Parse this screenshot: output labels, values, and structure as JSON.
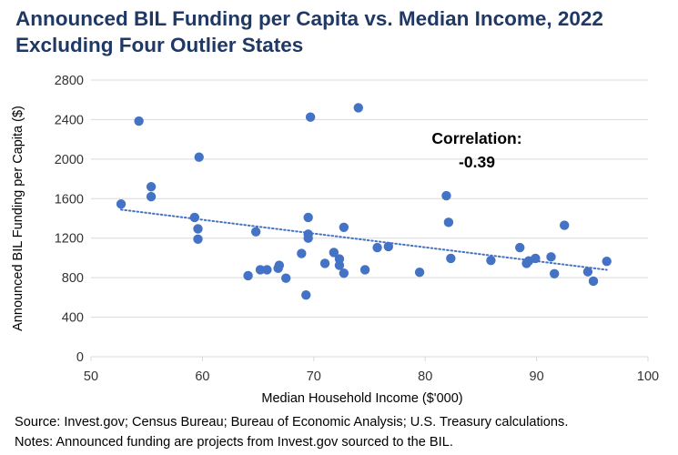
{
  "header": {
    "title_line1": "Announced BIL Funding per Capita vs. Median Income, 2022",
    "title_line2": "Excluding Four Outlier States"
  },
  "footer": {
    "source": "Source: Invest.gov; Census Bureau; Bureau of Economic Analysis; U.S. Treasury calculations.",
    "notes": "Notes: Announced funding are projects from Invest.gov sourced to the BIL."
  },
  "chart_data": {
    "type": "scatter",
    "title": "Announced BIL Funding per Capita vs. Median Income, 2022",
    "subtitle": "Excluding Four Outlier States",
    "xlabel": "Median Household Income ($'000)",
    "ylabel": "Announced BIL Funding per Capita ($)",
    "xlim": [
      50,
      100
    ],
    "ylim": [
      0,
      2800
    ],
    "xticks": [
      50,
      60,
      70,
      80,
      90,
      100
    ],
    "yticks": [
      0,
      400,
      800,
      1200,
      1600,
      2000,
      2400,
      2800
    ],
    "grid": "horizontal",
    "legend": "none",
    "trendline": {
      "style": "dotted",
      "type": "linear",
      "x_range": [
        52.7,
        96.3
      ]
    },
    "annotation": {
      "line1": "Correlation:",
      "line2": "-0.39"
    },
    "marker_color": "#4472c4",
    "points": [
      {
        "x": 52.7,
        "y": 1545
      },
      {
        "x": 54.3,
        "y": 2385
      },
      {
        "x": 55.4,
        "y": 1720
      },
      {
        "x": 55.4,
        "y": 1620
      },
      {
        "x": 59.3,
        "y": 1410
      },
      {
        "x": 59.6,
        "y": 1295
      },
      {
        "x": 59.6,
        "y": 1190
      },
      {
        "x": 59.7,
        "y": 2020
      },
      {
        "x": 64.1,
        "y": 820
      },
      {
        "x": 64.8,
        "y": 1265
      },
      {
        "x": 65.2,
        "y": 880
      },
      {
        "x": 65.8,
        "y": 880
      },
      {
        "x": 66.8,
        "y": 895
      },
      {
        "x": 66.9,
        "y": 925
      },
      {
        "x": 67.5,
        "y": 795
      },
      {
        "x": 68.9,
        "y": 1045
      },
      {
        "x": 69.3,
        "y": 625
      },
      {
        "x": 69.5,
        "y": 1410
      },
      {
        "x": 69.5,
        "y": 1240
      },
      {
        "x": 69.5,
        "y": 1200
      },
      {
        "x": 69.7,
        "y": 2425
      },
      {
        "x": 71.0,
        "y": 945
      },
      {
        "x": 71.8,
        "y": 1055
      },
      {
        "x": 72.3,
        "y": 990
      },
      {
        "x": 72.3,
        "y": 925
      },
      {
        "x": 72.7,
        "y": 1310
      },
      {
        "x": 72.7,
        "y": 845
      },
      {
        "x": 74.0,
        "y": 2520
      },
      {
        "x": 74.6,
        "y": 880
      },
      {
        "x": 75.7,
        "y": 1105
      },
      {
        "x": 76.7,
        "y": 1115
      },
      {
        "x": 79.5,
        "y": 855
      },
      {
        "x": 81.9,
        "y": 1630
      },
      {
        "x": 82.1,
        "y": 1360
      },
      {
        "x": 82.3,
        "y": 995
      },
      {
        "x": 85.9,
        "y": 975
      },
      {
        "x": 88.5,
        "y": 1105
      },
      {
        "x": 89.1,
        "y": 945
      },
      {
        "x": 89.3,
        "y": 970
      },
      {
        "x": 89.9,
        "y": 995
      },
      {
        "x": 91.3,
        "y": 1010
      },
      {
        "x": 91.6,
        "y": 840
      },
      {
        "x": 92.5,
        "y": 1330
      },
      {
        "x": 94.6,
        "y": 860
      },
      {
        "x": 95.1,
        "y": 765
      },
      {
        "x": 96.3,
        "y": 965
      }
    ]
  }
}
